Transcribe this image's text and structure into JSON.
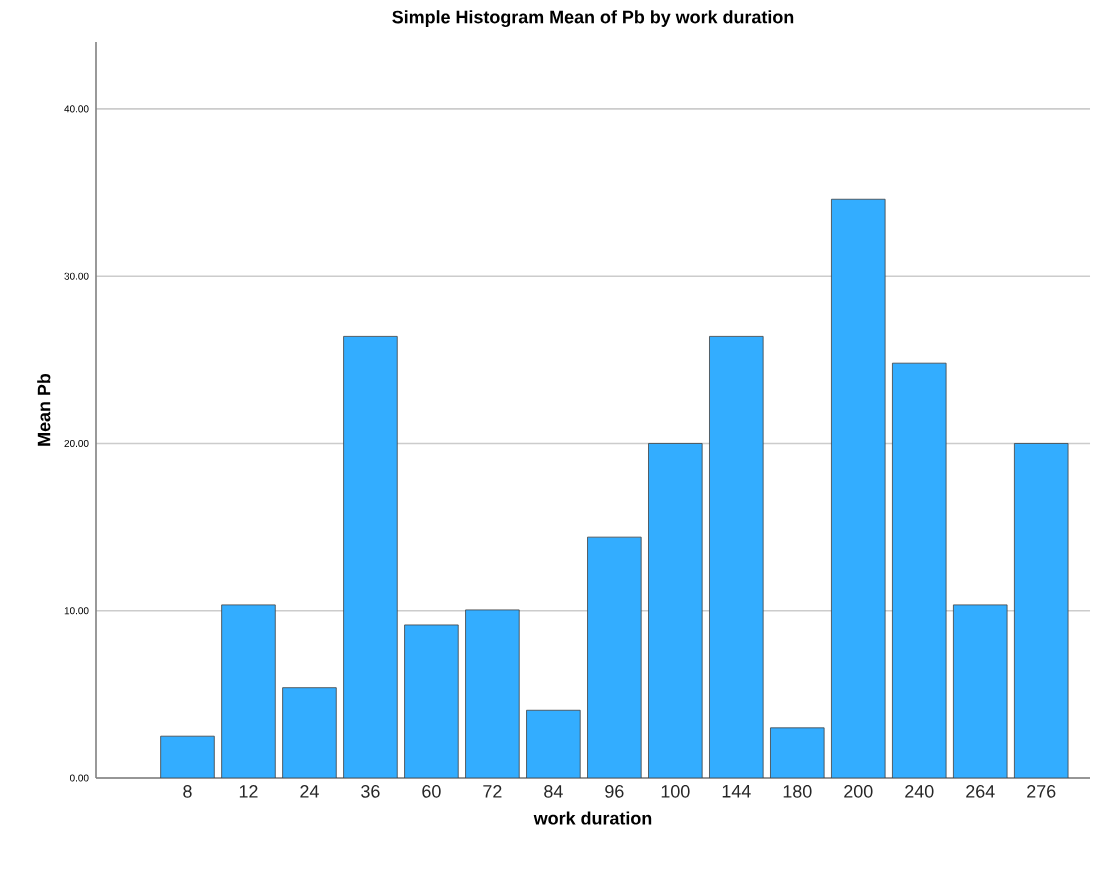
{
  "chart_data": {
    "type": "bar",
    "title": "Simple Histogram Mean of Pb by work duration",
    "xlabel": "work duration",
    "ylabel": "Mean Pb",
    "categories": [
      "8",
      "12",
      "24",
      "36",
      "60",
      "72",
      "84",
      "96",
      "100",
      "144",
      "180",
      "200",
      "240",
      "264",
      "276"
    ],
    "values": [
      2.5,
      10.35,
      5.4,
      26.4,
      9.15,
      10.05,
      4.05,
      14.4,
      20.0,
      26.4,
      3.0,
      34.6,
      24.8,
      10.35,
      20.0
    ],
    "color": "#33adff",
    "ylim": [
      0,
      44
    ],
    "yticks": [
      {
        "value": 0,
        "label": "0.00"
      },
      {
        "value": 10,
        "label": "10.00"
      },
      {
        "value": 20,
        "label": "20.00"
      },
      {
        "value": 30,
        "label": "30.00"
      },
      {
        "value": 40,
        "label": "40.00"
      }
    ],
    "grid": "y"
  }
}
